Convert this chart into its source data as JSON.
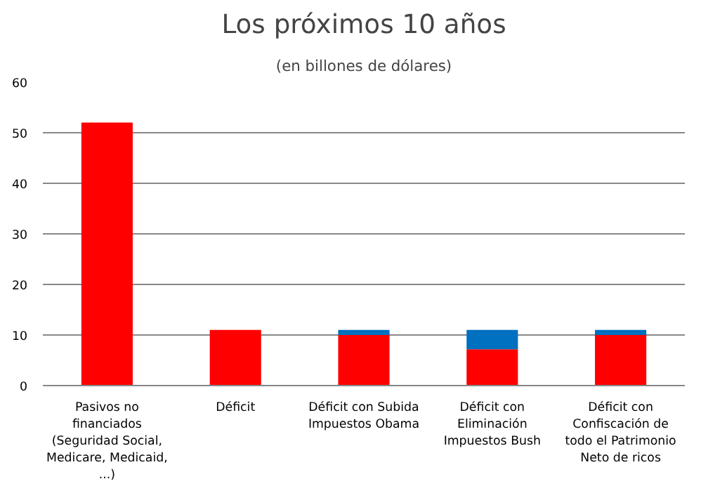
{
  "chart_data": {
    "type": "bar",
    "title": "Los próximos 10 años",
    "subtitle": "(en billones de dólares)",
    "categories": [
      "Pasivos no financiados (Seguridad Social, Medicare, Medicaid, ...)",
      "Déficit",
      "Déficit con Subida Impuestos Obama",
      "Déficit con Eliminación Impuestos Bush",
      "Déficit con Confiscación de todo el Patrimonio Neto de ricos"
    ],
    "stacked": true,
    "series": [
      {
        "color": "#ff0000",
        "values": [
          52,
          11,
          10,
          7.2,
          10
        ]
      },
      {
        "color": "#0070c0",
        "values": [
          0,
          0,
          1,
          3.8,
          1
        ]
      }
    ],
    "ylim": [
      0,
      60
    ],
    "yticks": [
      0,
      10,
      20,
      30,
      40,
      50,
      60
    ],
    "grid": "y"
  }
}
